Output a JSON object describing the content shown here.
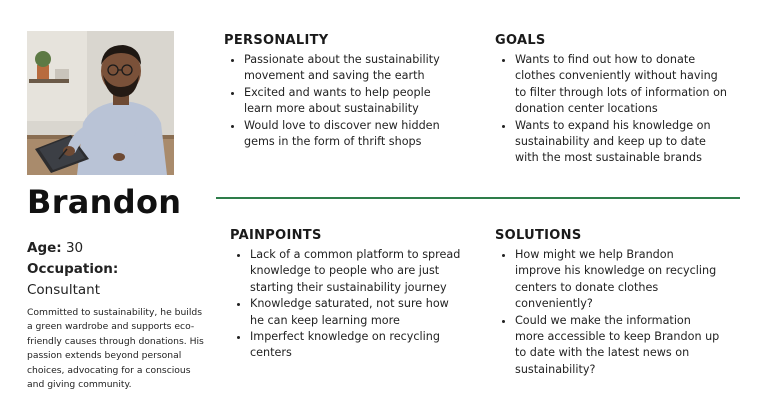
{
  "persona": {
    "name": "Brandon",
    "age_label": "Age:",
    "age_value": "30",
    "occupation_label": "Occupation:",
    "occupation_value": "Consultant",
    "bio": "Committed to sustainability, he builds a green wardrobe and supports eco-friendly causes through donations. His passion extends beyond personal choices, advocating for a conscious and giving community."
  },
  "personality": {
    "title": "PERSONALITY",
    "items": [
      "Passionate about the sustainability movement and saving the earth",
      "Excited and wants to help people learn more about sustainability",
      "Would love to discover new hidden gems in the form of thrift shops"
    ]
  },
  "goals": {
    "title": "GOALS",
    "items": [
      "Wants to find out how to donate clothes conveniently without having to filter through lots of information on donation center locations",
      "Wants to expand his knowledge on sustainability and keep up to date with the most sustainable brands"
    ]
  },
  "painpoints": {
    "title": "PAINPOINTS",
    "items": [
      "Lack of a common platform to spread knowledge to people who are just starting their sustainability journey",
      "Knowledge saturated, not sure how he can keep learning more",
      "Imperfect knowledge on recycling centers"
    ]
  },
  "solutions": {
    "title": "SOLUTIONS",
    "items": [
      "How might we help Brandon improve his knowledge on recycling centers to donate clothes conveniently?",
      "Could we make the information more accessible to keep Brandon up to date with the latest news on sustainability?"
    ]
  },
  "colors": {
    "divider": "#2e7d4a"
  }
}
